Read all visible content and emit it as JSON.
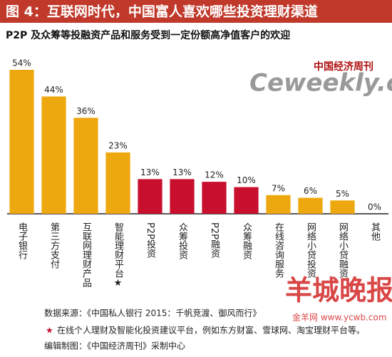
{
  "chart_data": {
    "type": "bar",
    "title": "图 4：互联网时代，中国富人喜欢哪些投资理财渠道",
    "subtitle": "P2P 及众筹等投融资产品和服务受到一定份额高净值客户的欢迎",
    "categories": [
      "电子银行",
      "第三方支付",
      "互联网理财产品",
      "智能理财平台★",
      "P2P投资",
      "众筹投资",
      "P2P融资",
      "众筹融资",
      "在线咨询服务",
      "网络小贷投资",
      "网络小贷融资",
      "其他"
    ],
    "values": [
      54,
      44,
      36,
      23,
      13,
      13,
      12,
      10,
      7,
      6,
      5,
      0
    ],
    "value_labels": [
      "54%",
      "44%",
      "36%",
      "23%",
      "13%",
      "13%",
      "12%",
      "10%",
      "7%",
      "6%",
      "5%",
      "0%"
    ],
    "colors": [
      "#eea80f",
      "#eea80f",
      "#eea80f",
      "#eea80f",
      "#c8102e",
      "#c8102e",
      "#c8102e",
      "#c8102e",
      "#eea80f",
      "#eea80f",
      "#eea80f",
      "#eea80f"
    ],
    "source": "数据来源：《中国私人银行 2015：千帆竞渡、御风而行》",
    "footnote": {
      "marker": "★",
      "text": "在线个人理财及智能化投资建议平台，例如东方财富、雪球网、淘宝理财平台等。"
    },
    "credit": "编辑制图：《中国经济周刊》采制中心",
    "watermarks": [
      "中国经济周刊",
      "Ceweekly.cn",
      "羊城晚报",
      "金羊网 www.ycwb.com"
    ]
  }
}
